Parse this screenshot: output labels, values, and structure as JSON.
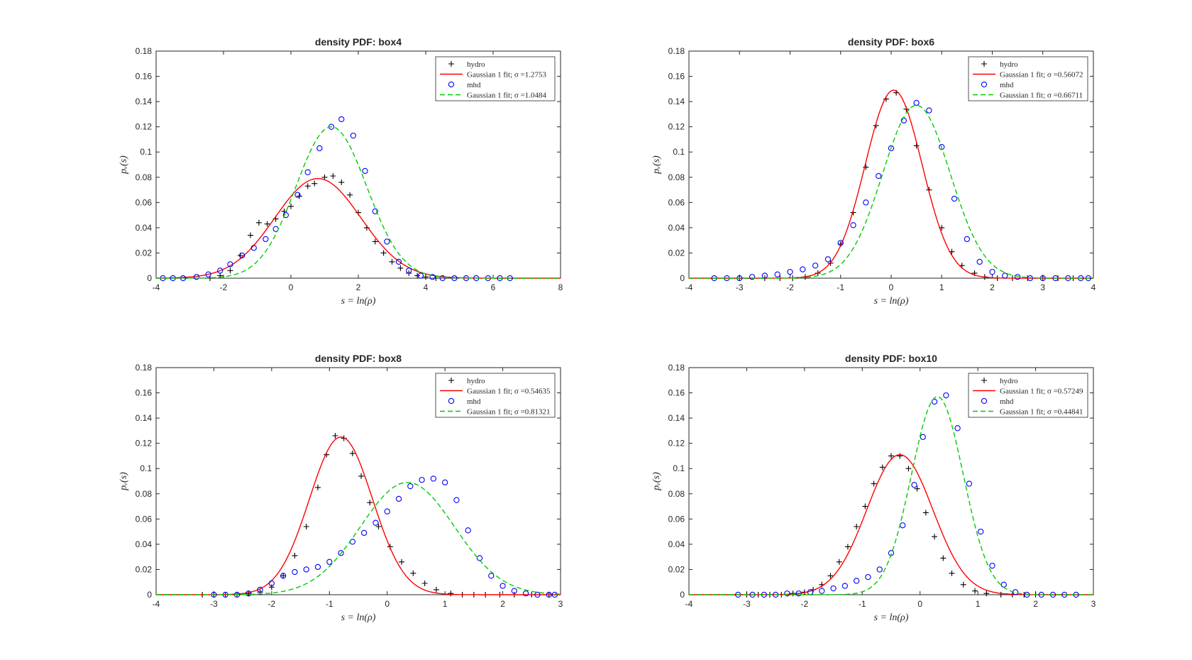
{
  "colors": {
    "hydro": "#000000",
    "mhd": "#0000ff",
    "hydro_fit": "#ff0000",
    "mhd_fit": "#00cc00"
  },
  "chart_data": [
    {
      "type": "scatter",
      "title": "density PDF: box4",
      "xlabel": "s = ln(ρ)",
      "ylabel": "pᵥ(s)",
      "xlim": [
        -4,
        8
      ],
      "ylim": [
        0,
        0.18
      ],
      "xticks": [
        "-4",
        "-2",
        "0",
        "2",
        "4",
        "6",
        "8"
      ],
      "yticks": [
        "0",
        "0.02",
        "0.04",
        "0.06",
        "0.08",
        "0.1",
        "0.12",
        "0.14",
        "0.16",
        "0.18"
      ],
      "legend_position": "top-right",
      "series": [
        {
          "name": "hydro",
          "kind": "marker-plus",
          "x": [
            -2.4,
            -2.1,
            -1.8,
            -1.5,
            -1.2,
            -0.95,
            -0.7,
            -0.45,
            -0.2,
            0.0,
            0.25,
            0.5,
            0.7,
            1.0,
            1.25,
            1.5,
            1.75,
            2.0,
            2.25,
            2.5,
            2.75,
            3.0,
            3.25,
            3.5,
            3.75,
            4.0,
            4.3
          ],
          "y": [
            0.0,
            0.002,
            0.006,
            0.018,
            0.034,
            0.044,
            0.043,
            0.047,
            0.053,
            0.057,
            0.065,
            0.073,
            0.075,
            0.08,
            0.081,
            0.076,
            0.066,
            0.052,
            0.04,
            0.029,
            0.02,
            0.013,
            0.008,
            0.004,
            0.002,
            0.001,
            0.0
          ]
        },
        {
          "name": "Gaussian 1 fit; σ =1.2753",
          "kind": "line-solid",
          "mu": 0.8,
          "sigma": 1.2753,
          "amp": 0.079
        },
        {
          "name": "mhd",
          "kind": "marker-circle",
          "x": [
            -3.8,
            -3.5,
            -3.2,
            -2.8,
            -2.45,
            -2.1,
            -1.8,
            -1.45,
            -1.1,
            -0.75,
            -0.45,
            -0.15,
            0.2,
            0.5,
            0.85,
            1.2,
            1.5,
            1.85,
            2.2,
            2.5,
            2.85,
            3.2,
            3.5,
            3.85,
            4.2,
            4.5,
            4.85,
            5.2,
            5.5,
            5.85,
            6.2,
            6.5
          ],
          "y": [
            0.0,
            0.0,
            0.0,
            0.001,
            0.003,
            0.006,
            0.011,
            0.018,
            0.024,
            0.031,
            0.039,
            0.05,
            0.066,
            0.084,
            0.103,
            0.12,
            0.126,
            0.113,
            0.085,
            0.053,
            0.029,
            0.013,
            0.006,
            0.002,
            0.001,
            0.0,
            0.0,
            0.0,
            0.0,
            0.0,
            0.0,
            0.0
          ]
        },
        {
          "name": "Gaussian 1 fit; σ =1.0484",
          "kind": "line-dashed",
          "mu": 1.2,
          "sigma": 1.0484,
          "amp": 0.12
        }
      ]
    },
    {
      "type": "scatter",
      "title": "density PDF: box6",
      "xlabel": "s = ln(ρ)",
      "ylabel": "pᵥ(s)",
      "xlim": [
        -4,
        4
      ],
      "ylim": [
        0,
        0.18
      ],
      "xticks": [
        "-4",
        "-3",
        "-2",
        "-1",
        "0",
        "1",
        "2",
        "3",
        "4"
      ],
      "yticks": [
        "0",
        "0.02",
        "0.04",
        "0.06",
        "0.08",
        "0.1",
        "0.12",
        "0.14",
        "0.16",
        "0.18"
      ],
      "legend_position": "top-right",
      "series": [
        {
          "name": "hydro",
          "kind": "marker-plus",
          "x": [
            -3.0,
            -2.5,
            -2.2,
            -1.95,
            -1.7,
            -1.45,
            -1.2,
            -1.0,
            -0.75,
            -0.5,
            -0.3,
            -0.1,
            0.1,
            0.3,
            0.5,
            0.75,
            1.0,
            1.2,
            1.4,
            1.65,
            1.85,
            2.1,
            2.4,
            2.7,
            3.0,
            3.3,
            3.6
          ],
          "y": [
            0.0,
            0.0,
            0.0,
            0.0,
            0.001,
            0.004,
            0.012,
            0.027,
            0.052,
            0.088,
            0.121,
            0.142,
            0.147,
            0.134,
            0.105,
            0.07,
            0.04,
            0.021,
            0.01,
            0.004,
            0.001,
            0.0,
            0.0,
            0.0,
            0.0,
            0.0,
            0.0
          ]
        },
        {
          "name": "Gaussian 1 fit; σ =0.56072",
          "kind": "line-solid",
          "mu": 0.05,
          "sigma": 0.56072,
          "amp": 0.149
        },
        {
          "name": "mhd",
          "kind": "marker-circle",
          "x": [
            -3.5,
            -3.25,
            -3.0,
            -2.75,
            -2.5,
            -2.25,
            -2.0,
            -1.75,
            -1.5,
            -1.25,
            -1.0,
            -0.75,
            -0.5,
            -0.25,
            0.0,
            0.25,
            0.5,
            0.75,
            1.0,
            1.25,
            1.5,
            1.75,
            2.0,
            2.25,
            2.5,
            2.75,
            3.0,
            3.25,
            3.5,
            3.75,
            3.9
          ],
          "y": [
            0.0,
            0.0,
            0.0,
            0.001,
            0.002,
            0.003,
            0.005,
            0.007,
            0.01,
            0.015,
            0.028,
            0.042,
            0.06,
            0.081,
            0.103,
            0.125,
            0.139,
            0.133,
            0.104,
            0.063,
            0.031,
            0.013,
            0.005,
            0.002,
            0.001,
            0.0,
            0.0,
            0.0,
            0.0,
            0.0,
            0.0
          ]
        },
        {
          "name": "Gaussian 1 fit; σ =0.66711",
          "kind": "line-dashed",
          "mu": 0.5,
          "sigma": 0.66711,
          "amp": 0.137
        }
      ]
    },
    {
      "type": "scatter",
      "title": "density PDF: box8",
      "xlabel": "s = ln(ρ)",
      "ylabel": "pᵥ(s)",
      "xlim": [
        -4,
        3
      ],
      "ylim": [
        0,
        0.18
      ],
      "xticks": [
        "-4",
        "-3",
        "-2",
        "-1",
        "0",
        "1",
        "2",
        "3"
      ],
      "yticks": [
        "0",
        "0.02",
        "0.04",
        "0.06",
        "0.08",
        "0.1",
        "0.12",
        "0.14",
        "0.16",
        "0.18"
      ],
      "legend_position": "top-right",
      "series": [
        {
          "name": "hydro",
          "kind": "marker-plus",
          "x": [
            -3.2,
            -3.0,
            -2.8,
            -2.6,
            -2.4,
            -2.2,
            -2.0,
            -1.8,
            -1.6,
            -1.4,
            -1.2,
            -1.05,
            -0.9,
            -0.75,
            -0.6,
            -0.45,
            -0.3,
            -0.15,
            0.05,
            0.25,
            0.45,
            0.65,
            0.85,
            1.1,
            1.3,
            1.5,
            1.7,
            1.95,
            2.2,
            2.5,
            2.8
          ],
          "y": [
            0.0,
            0.0,
            0.0,
            0.0,
            0.001,
            0.002,
            0.006,
            0.015,
            0.031,
            0.054,
            0.085,
            0.111,
            0.126,
            0.124,
            0.112,
            0.094,
            0.073,
            0.054,
            0.038,
            0.026,
            0.017,
            0.009,
            0.004,
            0.001,
            0.0,
            0.0,
            0.0,
            0.0,
            0.0,
            0.0,
            0.0
          ]
        },
        {
          "name": "Gaussian 1 fit; σ =0.54635",
          "kind": "line-solid",
          "mu": -0.8,
          "sigma": 0.54635,
          "amp": 0.125
        },
        {
          "name": "mhd",
          "kind": "marker-circle",
          "x": [
            -3.0,
            -2.8,
            -2.6,
            -2.4,
            -2.2,
            -2.0,
            -1.8,
            -1.6,
            -1.4,
            -1.2,
            -1.0,
            -0.8,
            -0.6,
            -0.4,
            -0.2,
            0.0,
            0.2,
            0.4,
            0.6,
            0.8,
            1.0,
            1.2,
            1.4,
            1.6,
            1.8,
            2.0,
            2.2,
            2.4,
            2.6,
            2.8,
            2.9
          ],
          "y": [
            0.0,
            0.0,
            0.0,
            0.001,
            0.004,
            0.009,
            0.015,
            0.018,
            0.02,
            0.022,
            0.026,
            0.033,
            0.042,
            0.049,
            0.057,
            0.066,
            0.076,
            0.086,
            0.091,
            0.092,
            0.089,
            0.075,
            0.051,
            0.029,
            0.015,
            0.007,
            0.003,
            0.001,
            0.0,
            0.0,
            0.0
          ]
        },
        {
          "name": "Gaussian 1 fit; σ =0.81321",
          "kind": "line-dashed",
          "mu": 0.35,
          "sigma": 0.81321,
          "amp": 0.089
        }
      ]
    },
    {
      "type": "scatter",
      "title": "density PDF: box10",
      "xlabel": "s = ln(ρ)",
      "ylabel": "pᵥ(s)",
      "xlim": [
        -4,
        3
      ],
      "ylim": [
        0,
        0.18
      ],
      "xticks": [
        "-4",
        "-3",
        "-2",
        "-1",
        "0",
        "1",
        "2",
        "3"
      ],
      "yticks": [
        "0",
        "0.02",
        "0.04",
        "0.06",
        "0.08",
        "0.1",
        "0.12",
        "0.14",
        "0.16",
        "0.18"
      ],
      "legend_position": "top-right",
      "series": [
        {
          "name": "hydro",
          "kind": "marker-plus",
          "x": [
            -3.0,
            -2.8,
            -2.6,
            -2.4,
            -2.2,
            -2.0,
            -1.85,
            -1.7,
            -1.55,
            -1.4,
            -1.25,
            -1.1,
            -0.95,
            -0.8,
            -0.65,
            -0.5,
            -0.35,
            -0.2,
            -0.05,
            0.1,
            0.25,
            0.4,
            0.55,
            0.75,
            0.95,
            1.15,
            1.4,
            1.6,
            1.8,
            2.0
          ],
          "y": [
            0.0,
            0.0,
            0.0,
            0.0,
            0.001,
            0.002,
            0.004,
            0.008,
            0.015,
            0.026,
            0.038,
            0.054,
            0.07,
            0.088,
            0.101,
            0.11,
            0.11,
            0.1,
            0.084,
            0.065,
            0.046,
            0.029,
            0.017,
            0.008,
            0.003,
            0.001,
            0.0,
            0.0,
            0.0,
            0.0
          ]
        },
        {
          "name": "Gaussian 1 fit; σ =0.57249",
          "kind": "line-solid",
          "mu": -0.35,
          "sigma": 0.57249,
          "amp": 0.111
        },
        {
          "name": "mhd",
          "kind": "marker-circle",
          "x": [
            -3.15,
            -2.9,
            -2.7,
            -2.5,
            -2.3,
            -2.1,
            -1.9,
            -1.7,
            -1.5,
            -1.3,
            -1.1,
            -0.9,
            -0.7,
            -0.5,
            -0.3,
            -0.1,
            0.05,
            0.25,
            0.45,
            0.65,
            0.85,
            1.05,
            1.25,
            1.45,
            1.65,
            1.85,
            2.1,
            2.3,
            2.5,
            2.7
          ],
          "y": [
            0.0,
            0.0,
            0.0,
            0.0,
            0.001,
            0.001,
            0.002,
            0.003,
            0.005,
            0.007,
            0.011,
            0.014,
            0.02,
            0.033,
            0.055,
            0.087,
            0.125,
            0.153,
            0.158,
            0.132,
            0.088,
            0.05,
            0.023,
            0.008,
            0.002,
            0.0,
            0.0,
            0.0,
            0.0,
            0.0
          ]
        },
        {
          "name": "Gaussian 1 fit; σ =0.44841",
          "kind": "line-dashed",
          "mu": 0.3,
          "sigma": 0.44841,
          "amp": 0.157
        }
      ]
    }
  ]
}
